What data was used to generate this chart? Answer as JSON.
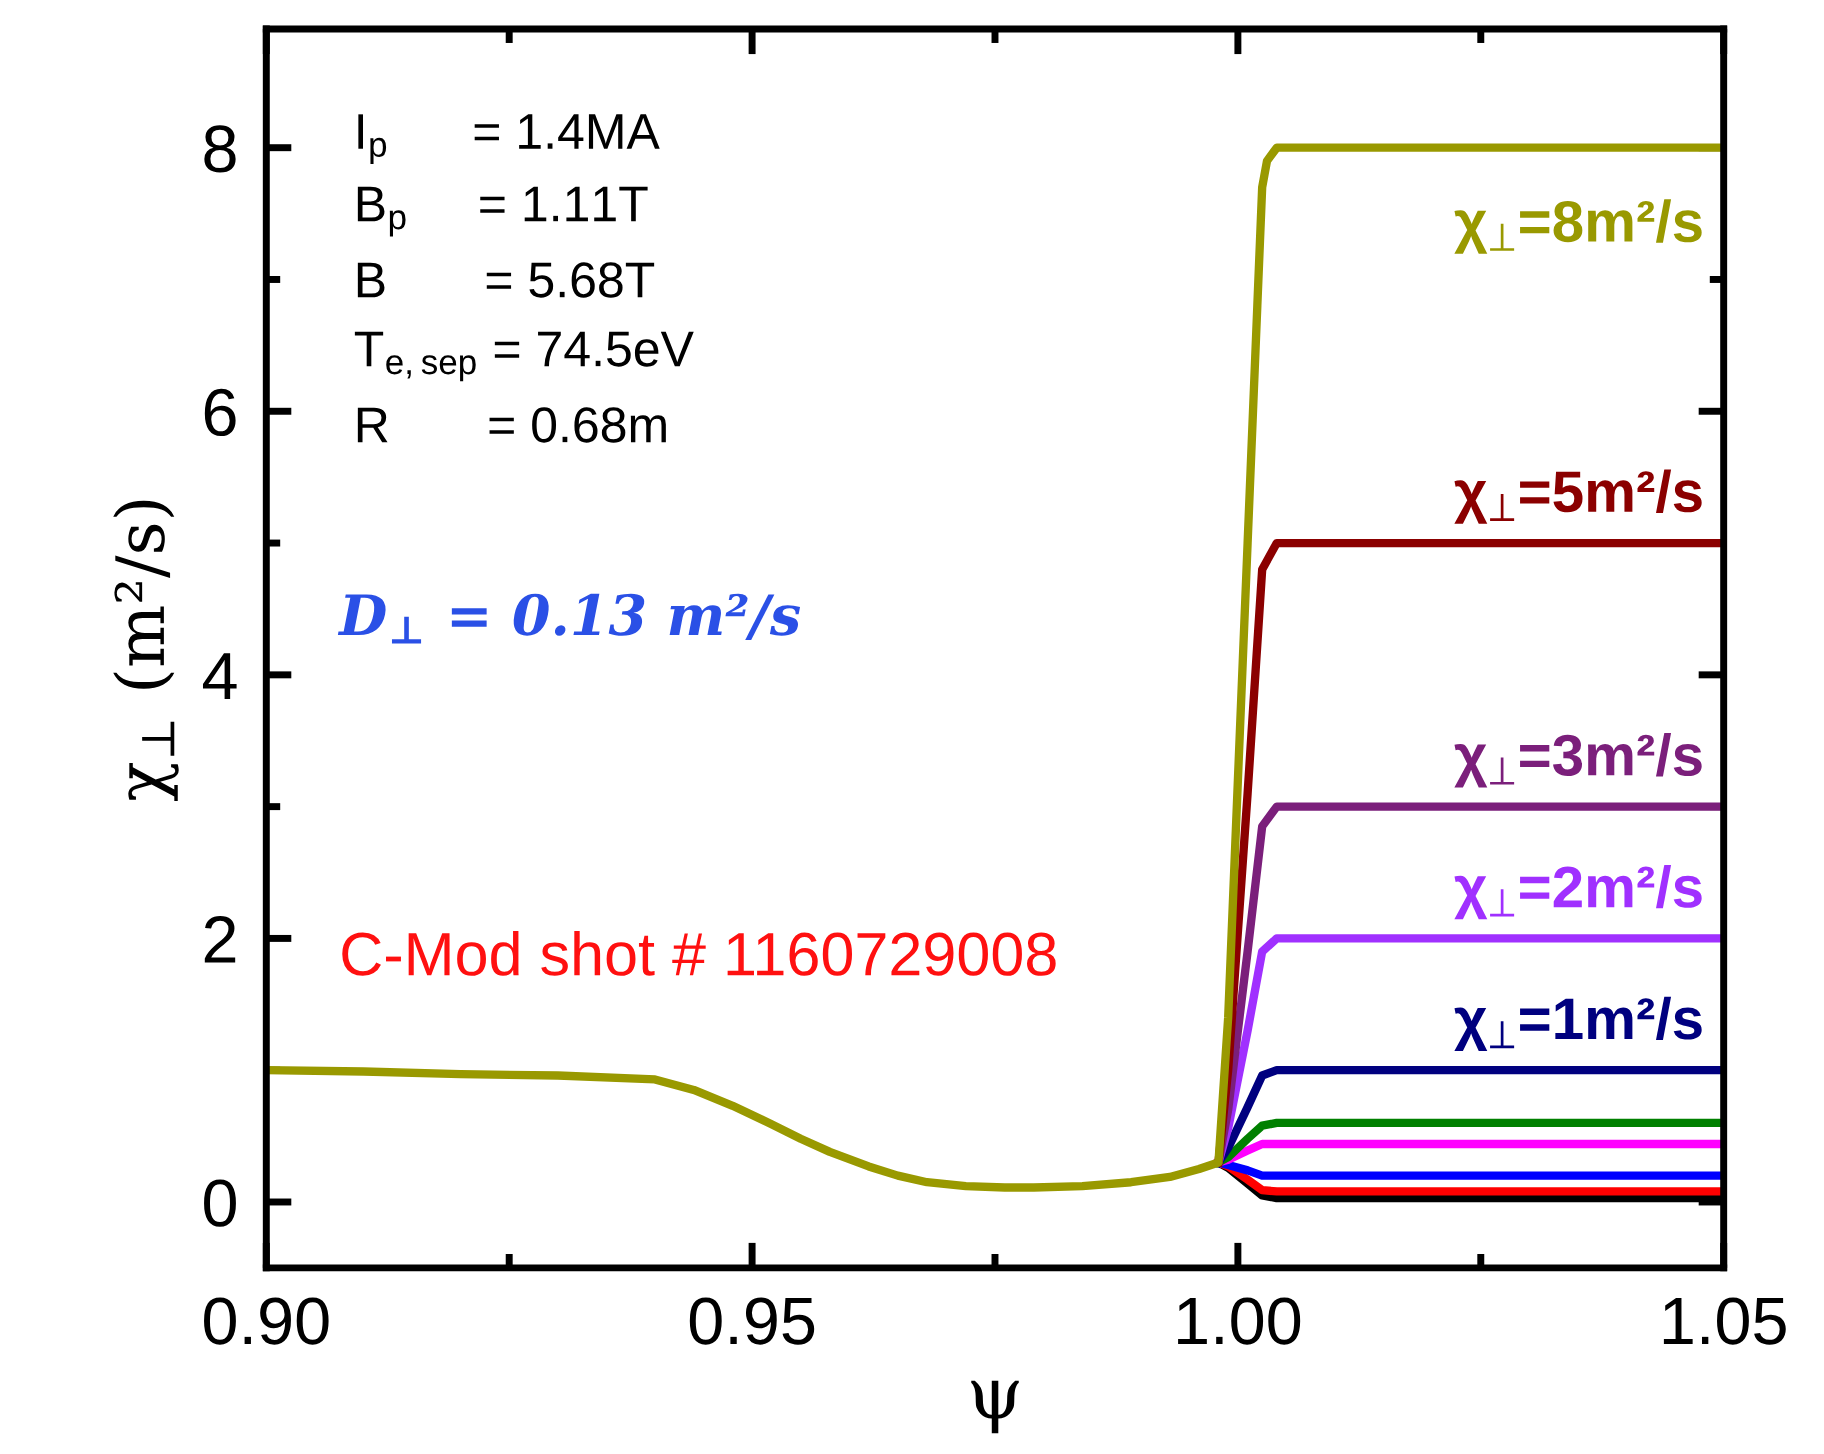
{
  "chart_data": {
    "type": "line",
    "xlabel": "ψ",
    "ylabel": "χ$_{⊥}$ (m²/s)",
    "xlim": [
      0.9,
      1.05
    ],
    "xticks": [
      {
        "value": 0.9,
        "label": "0.90"
      },
      {
        "value": 0.95,
        "label": "0.95"
      },
      {
        "value": 1.0,
        "label": "1.00"
      },
      {
        "value": 1.05,
        "label": "1.05"
      }
    ],
    "ylim": [
      -0.5,
      8.9
    ],
    "yticks": [
      0,
      2,
      4,
      6,
      8
    ],
    "grid": false,
    "legend": false,
    "marker": "none",
    "line_style": "solid",
    "annotations": [
      "I$_{p}$      = 1.4MA",
      "B$_{p}$     = 1.11T",
      "B       = 5.68T",
      "T$_{e,sep}$ = 74.5eV",
      "R       = 0.68m",
      "D$_{⊥}$ = 0.13 m²/s",
      "C-Mod shot # 1160729008"
    ],
    "series": [
      {
        "color": "#000000",
        "x": [
          0.998,
          0.999,
          1.001,
          1.0025,
          1.004,
          1.05
        ],
        "values": [
          0.3,
          0.26,
          0.14,
          0.05,
          0.03,
          0.03
        ]
      },
      {
        "color": "#ff0000",
        "x": [
          0.998,
          0.999,
          1.001,
          1.0025,
          1.004,
          1.05
        ],
        "values": [
          0.3,
          0.27,
          0.17,
          0.09,
          0.08,
          0.08
        ]
      },
      {
        "color": "#0000ff",
        "x": [
          0.998,
          0.999,
          1.001,
          1.0025,
          1.004,
          1.05
        ],
        "values": [
          0.3,
          0.28,
          0.24,
          0.2,
          0.2,
          0.2
        ]
      },
      {
        "color": "#ff00ff",
        "x": [
          0.998,
          0.999,
          1.001,
          1.0025,
          1.004,
          1.05
        ],
        "values": [
          0.3,
          0.32,
          0.39,
          0.44,
          0.44,
          0.44
        ]
      },
      {
        "color": "#008000",
        "x": [
          0.998,
          0.999,
          1.001,
          1.0025,
          1.004,
          1.05
        ],
        "values": [
          0.3,
          0.34,
          0.48,
          0.58,
          0.6,
          0.6
        ]
      },
      {
        "name": "χ$_{⊥}$=1m²/s",
        "color": "#00007f",
        "x": [
          0.998,
          0.999,
          1.001,
          1.0025,
          1.004,
          1.05
        ],
        "values": [
          0.3,
          0.41,
          0.72,
          0.96,
          1.0,
          1.0
        ]
      },
      {
        "name": "χ$_{⊥}$=2m²/s",
        "color": "#a030ff",
        "x": [
          0.998,
          0.999,
          1.001,
          1.0025,
          1.004,
          1.05
        ],
        "values": [
          0.3,
          0.56,
          1.3,
          1.9,
          2.0,
          2.0
        ]
      },
      {
        "name": "χ$_{⊥}$=3m²/s",
        "color": "#7b1f7b",
        "x": [
          0.998,
          0.999,
          1.001,
          1.0025,
          1.004,
          1.05
        ],
        "values": [
          0.3,
          0.7,
          1.9,
          2.85,
          3.0,
          3.0
        ]
      },
      {
        "name": "χ$_{⊥}$=5m²/s",
        "color": "#8b0000",
        "x": [
          0.998,
          0.999,
          1.001,
          1.0025,
          1.004,
          1.05
        ],
        "values": [
          0.3,
          1.0,
          3.1,
          4.8,
          5.0,
          5.0
        ]
      },
      {
        "name": "χ$_{⊥}$=8m²/s",
        "color": "#999900",
        "x": [
          0.9,
          0.91,
          0.92,
          0.93,
          0.94,
          0.944,
          0.948,
          0.952,
          0.955,
          0.958,
          0.962,
          0.965,
          0.968,
          0.972,
          0.976,
          0.979,
          0.984,
          0.989,
          0.993,
          0.996,
          0.998,
          0.999,
          1.0,
          1.001,
          1.002,
          1.0025,
          1.003,
          1.004,
          1.05
        ],
        "values": [
          1.0,
          0.99,
          0.97,
          0.96,
          0.93,
          0.85,
          0.73,
          0.59,
          0.48,
          0.38,
          0.27,
          0.2,
          0.15,
          0.12,
          0.11,
          0.11,
          0.12,
          0.15,
          0.19,
          0.25,
          0.3,
          1.4,
          3.2,
          5.0,
          6.8,
          7.7,
          7.9,
          8.0,
          8.0
        ]
      }
    ]
  }
}
